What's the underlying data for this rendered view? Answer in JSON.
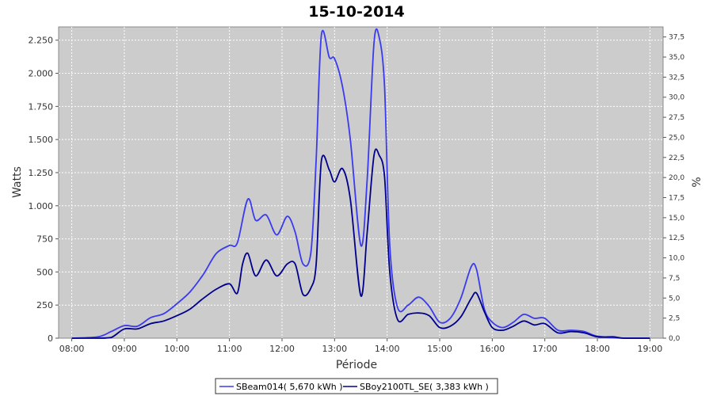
{
  "chart_data": {
    "type": "line",
    "title": "15-10-2014",
    "xlabel": "Période",
    "ylabel": "Watts",
    "y2label": "%",
    "xlim": [
      7.75,
      19.25
    ],
    "ylim": [
      0,
      2350
    ],
    "y2lim": [
      0,
      38.75
    ],
    "x_ticks": [
      8,
      9,
      10,
      11,
      12,
      13,
      14,
      15,
      16,
      17,
      18,
      19
    ],
    "x_tick_labels": [
      "08:00",
      "09:00",
      "10:00",
      "11:00",
      "12:00",
      "13:00",
      "14:00",
      "15:00",
      "16:00",
      "17:00",
      "18:00",
      "19:00"
    ],
    "y_ticks": [
      0,
      250,
      500,
      750,
      1000,
      1250,
      1500,
      1750,
      2000,
      2250
    ],
    "y_tick_labels": [
      "0",
      "250",
      "500",
      "750",
      "1.000",
      "1.250",
      "1.500",
      "1.750",
      "2.000",
      "2.250"
    ],
    "y2_ticks": [
      0,
      2.5,
      5,
      7.5,
      10,
      12.5,
      15,
      17.5,
      20,
      22.5,
      25,
      27.5,
      30,
      32.5,
      35,
      37.5
    ],
    "y2_tick_labels": [
      "0,0",
      "2,5",
      "5,0",
      "7,5",
      "10,0",
      "12,5",
      "15,0",
      "17,5",
      "20,0",
      "22,5",
      "25,0",
      "27,5",
      "30,0",
      "32,5",
      "35,0",
      "37,5"
    ],
    "grid": true,
    "legend_position": "bottom",
    "series": [
      {
        "name": "SBeam014( 5,670 kWh )",
        "color": "#3a3af0",
        "x": [
          8.0,
          8.5,
          8.75,
          9.0,
          9.25,
          9.5,
          9.75,
          10.0,
          10.25,
          10.5,
          10.75,
          11.0,
          11.15,
          11.35,
          11.5,
          11.7,
          11.9,
          12.1,
          12.25,
          12.4,
          12.55,
          12.65,
          12.75,
          12.9,
          13.0,
          13.15,
          13.3,
          13.5,
          13.62,
          13.75,
          13.85,
          13.95,
          14.05,
          14.2,
          14.4,
          14.6,
          14.8,
          15.0,
          15.2,
          15.4,
          15.6,
          15.7,
          15.85,
          16.0,
          16.2,
          16.4,
          16.6,
          16.8,
          17.0,
          17.25,
          17.5,
          17.75,
          18.0,
          18.5,
          19.0
        ],
        "y": [
          0,
          10,
          50,
          95,
          90,
          155,
          185,
          260,
          350,
          480,
          640,
          700,
          720,
          1050,
          890,
          930,
          780,
          920,
          800,
          560,
          650,
          1350,
          2290,
          2120,
          2110,
          1900,
          1500,
          700,
          1200,
          2230,
          2270,
          1900,
          700,
          230,
          250,
          310,
          240,
          120,
          150,
          300,
          540,
          520,
          220,
          120,
          80,
          120,
          180,
          150,
          150,
          60,
          60,
          50,
          15,
          0,
          0
        ]
      },
      {
        "name": "SBoy2100TL_SE( 3,383 kWh )",
        "color": "#00008b",
        "x": [
          8.0,
          8.5,
          8.75,
          9.0,
          9.25,
          9.5,
          9.75,
          10.0,
          10.25,
          10.5,
          10.75,
          11.0,
          11.15,
          11.25,
          11.35,
          11.5,
          11.7,
          11.9,
          12.1,
          12.25,
          12.4,
          12.55,
          12.65,
          12.75,
          12.9,
          13.0,
          13.15,
          13.3,
          13.5,
          13.62,
          13.75,
          13.85,
          13.95,
          14.05,
          14.2,
          14.4,
          14.6,
          14.8,
          15.0,
          15.2,
          15.4,
          15.6,
          15.7,
          15.85,
          16.0,
          16.2,
          16.4,
          16.6,
          16.8,
          17.0,
          17.25,
          17.5,
          17.75,
          18.0,
          18.3,
          18.5,
          19.0
        ],
        "y": [
          0,
          0,
          5,
          70,
          70,
          110,
          130,
          170,
          220,
          300,
          370,
          410,
          340,
          560,
          640,
          470,
          590,
          470,
          560,
          560,
          330,
          380,
          560,
          1340,
          1270,
          1180,
          1280,
          1050,
          320,
          800,
          1380,
          1380,
          1220,
          500,
          140,
          180,
          190,
          170,
          80,
          90,
          160,
          300,
          340,
          200,
          80,
          60,
          90,
          130,
          100,
          110,
          40,
          50,
          40,
          10,
          10,
          0,
          0
        ]
      }
    ]
  }
}
